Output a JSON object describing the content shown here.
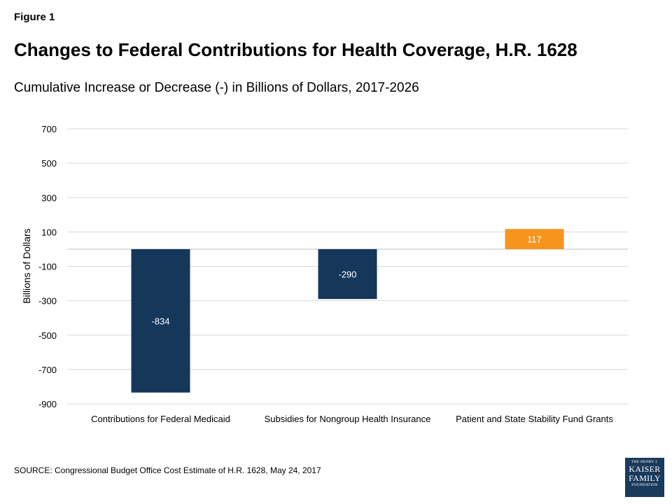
{
  "figure_label": "Figure 1",
  "title": "Changes to Federal Contributions for Health Coverage, H.R. 1628",
  "subtitle": "Cumulative Increase or Decrease (-) in Billions of Dollars, 2017-2026",
  "source": "SOURCE: Congressional Budget Office Cost Estimate of H.R. 1628, May 24, 2017",
  "logo": {
    "line1": "THE HENRY J.",
    "line2": "KAISER",
    "line3": "FAMILY",
    "line4": "FOUNDATION"
  },
  "chart_data": {
    "type": "bar",
    "categories": [
      "Contributions for Federal Medicaid",
      "Subsidies for Nongroup Health Insurance",
      "Patient and State Stability Fund Grants"
    ],
    "values": [
      -834,
      -290,
      117
    ],
    "data_labels": [
      "-834",
      "-290",
      "117"
    ],
    "colors": [
      "#15375a",
      "#15375a",
      "#f7941d"
    ],
    "ylabel": "Billions of Dollars",
    "ylim": [
      -900,
      700
    ],
    "yticks": [
      700,
      500,
      300,
      100,
      -100,
      -300,
      -500,
      -700,
      -900
    ],
    "grid": true,
    "gridline_color": "#d9d9d9",
    "zero_line_color": "#bfbfbf"
  }
}
